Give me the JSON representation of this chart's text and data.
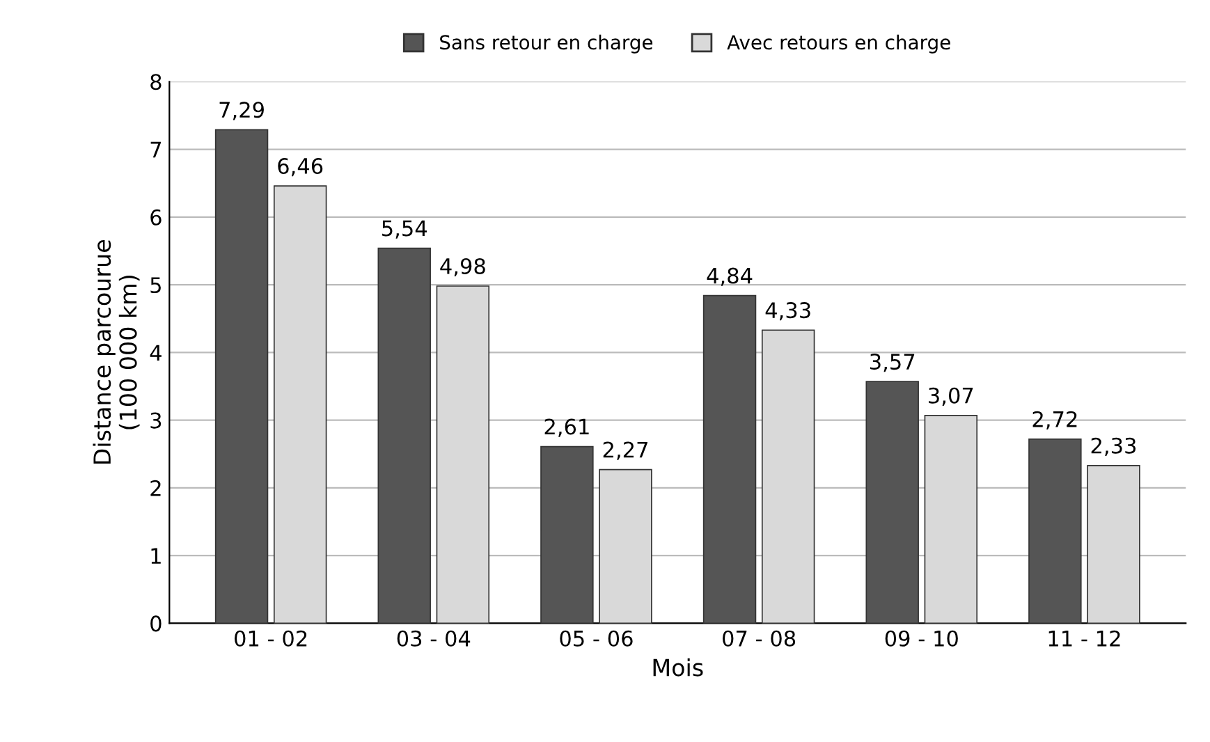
{
  "chart_data": {
    "type": "bar",
    "xlabel": "Mois",
    "ylabel": "Distance parcourue\n(100 000 km)",
    "categories": [
      "01 - 02",
      "03 - 04",
      "05 - 06",
      "07 - 08",
      "09 - 10",
      "11 - 12"
    ],
    "series": [
      {
        "name": "Sans retour en charge",
        "color": "#555555",
        "values": [
          7.29,
          5.54,
          2.61,
          4.84,
          3.57,
          2.72
        ],
        "value_labels": [
          "7,29",
          "5,54",
          "2,61",
          "4,84",
          "3,57",
          "2,72"
        ]
      },
      {
        "name": "Avec retours en charge",
        "color": "#d9d9d9",
        "values": [
          6.46,
          4.98,
          2.27,
          4.33,
          3.07,
          2.33
        ],
        "value_labels": [
          "6,46",
          "4,98",
          "2,27",
          "4,33",
          "3,07",
          "2,33"
        ]
      }
    ],
    "ylim": [
      0,
      8
    ],
    "yticks": [
      0,
      1,
      2,
      3,
      4,
      5,
      6,
      7,
      8
    ],
    "grid": "y",
    "legend": "top"
  }
}
